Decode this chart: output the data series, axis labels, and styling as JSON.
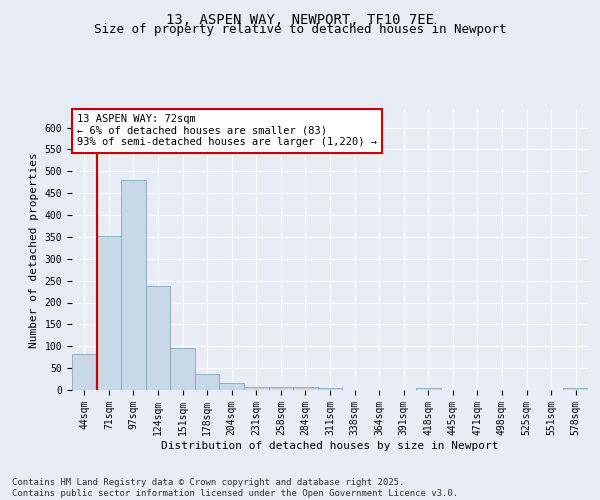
{
  "title": "13, ASPEN WAY, NEWPORT, TF10 7EE",
  "subtitle": "Size of property relative to detached houses in Newport",
  "xlabel": "Distribution of detached houses by size in Newport",
  "ylabel": "Number of detached properties",
  "footer_line1": "Contains HM Land Registry data © Crown copyright and database right 2025.",
  "footer_line2": "Contains public sector information licensed under the Open Government Licence v3.0.",
  "bar_color": "#c8d8e8",
  "bar_edge_color": "#7aaac8",
  "vline_color": "#cc0000",
  "annotation_box_color": "#cc0000",
  "annotation_line1": "13 ASPEN WAY: 72sqm",
  "annotation_line2": "← 6% of detached houses are smaller (83)",
  "annotation_line3": "93% of semi-detached houses are larger (1,220) →",
  "vline_position": 1,
  "categories": [
    "44sqm",
    "71sqm",
    "97sqm",
    "124sqm",
    "151sqm",
    "178sqm",
    "204sqm",
    "231sqm",
    "258sqm",
    "284sqm",
    "311sqm",
    "338sqm",
    "364sqm",
    "391sqm",
    "418sqm",
    "445sqm",
    "471sqm",
    "498sqm",
    "525sqm",
    "551sqm",
    "578sqm"
  ],
  "values": [
    83,
    353,
    480,
    237,
    96,
    37,
    16,
    7,
    8,
    7,
    4,
    0,
    0,
    0,
    5,
    0,
    0,
    0,
    0,
    0,
    5
  ],
  "ylim": [
    0,
    640
  ],
  "yticks": [
    0,
    50,
    100,
    150,
    200,
    250,
    300,
    350,
    400,
    450,
    500,
    550,
    600
  ],
  "background_color": "#e8edf5",
  "plot_background": "#e8edf5",
  "grid_color": "#ffffff",
  "title_fontsize": 10,
  "subtitle_fontsize": 9,
  "axis_label_fontsize": 8,
  "tick_fontsize": 7,
  "footer_fontsize": 6.5,
  "annotation_fontsize": 7.5
}
